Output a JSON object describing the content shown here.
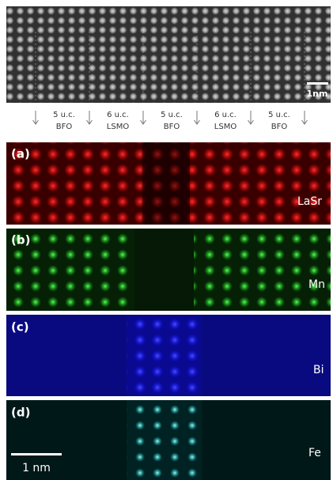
{
  "top_image": {
    "scale_bar": "1nm",
    "layers": [
      {
        "thickness": "5 u.c.",
        "material": "BFO"
      },
      {
        "thickness": "6 u.c.",
        "material": "LSMO"
      },
      {
        "thickness": "5 u.c.",
        "material": "BFO"
      },
      {
        "thickness": "6 u.c.",
        "material": "LSMO"
      },
      {
        "thickness": "5 u.c.",
        "material": "BFO"
      }
    ]
  },
  "panels": [
    {
      "label": "(a)",
      "element": "LaSr"
    },
    {
      "label": "(b)",
      "element": "Mn"
    },
    {
      "label": "(c)",
      "element": "Bi"
    },
    {
      "label": "(d)",
      "element": "Fe"
    }
  ],
  "scale_bar": "1 nm"
}
